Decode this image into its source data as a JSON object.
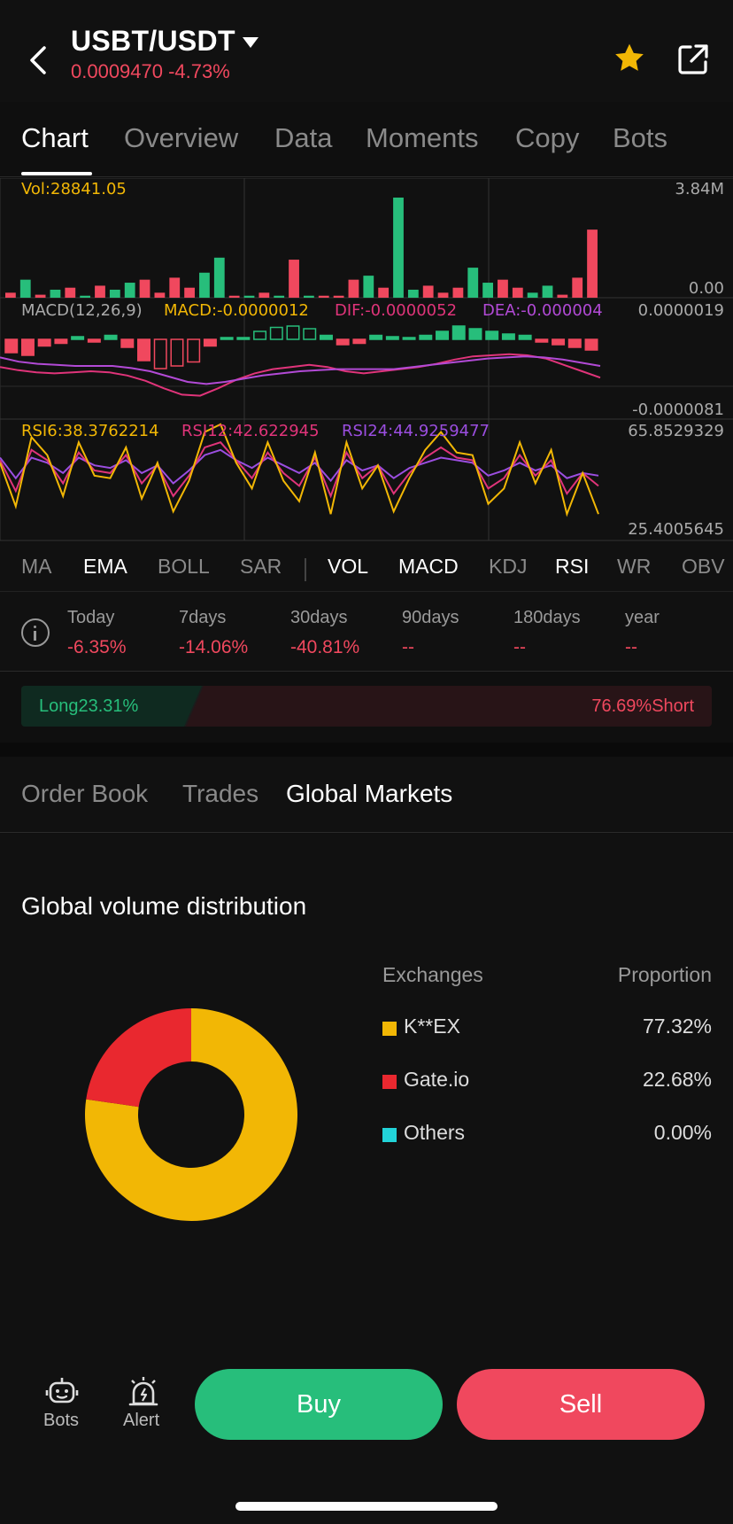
{
  "header": {
    "pair": "USBT/USDT",
    "price_change": "0.0009470 -4.73%"
  },
  "tabs": [
    "Chart",
    "Overview",
    "Data",
    "Moments",
    "Copy",
    "Bots"
  ],
  "chart": {
    "vol_label": "Vol:28841.05",
    "vol_max": "3.84M",
    "vol_min": "0.00",
    "macd_params": "MACD(12,26,9)",
    "macd_value": "MACD:-0.0000012",
    "dif_value": "DIF:-0.0000052",
    "dea_value": "DEA:-0.000004",
    "macd_max": "0.0000019",
    "macd_min": "-0.0000081",
    "rsi6": "RSI6:38.3762214",
    "rsi12": "RSI12:42.622945",
    "rsi24": "RSI24:44.9259477",
    "rsi_max": "65.8529329",
    "rsi_min": "25.4005645"
  },
  "chart_data": {
    "type": "bar",
    "title": "",
    "volume": [
      0.05,
      0.18,
      0.03,
      0.08,
      0.1,
      0.02,
      0.12,
      0.08,
      0.15,
      0.18,
      0.05,
      0.2,
      0.1,
      0.25,
      0.4,
      0.02,
      0.02,
      0.05,
      0.02,
      0.38,
      0.02,
      0.02,
      0.02,
      0.18,
      0.22,
      0.1,
      1.0,
      0.08,
      0.12,
      0.05,
      0.1,
      0.3,
      0.15,
      0.18,
      0.1,
      0.05,
      0.12,
      0.03,
      0.2,
      0.68
    ],
    "volume_up": [
      false,
      true,
      false,
      true,
      false,
      true,
      false,
      true,
      true,
      false,
      false,
      false,
      false,
      true,
      true,
      false,
      true,
      false,
      true,
      false,
      true,
      false,
      false,
      false,
      true,
      false,
      true,
      true,
      false,
      false,
      false,
      true,
      true,
      false,
      false,
      true,
      true,
      false,
      false,
      false
    ],
    "macd_hist": [
      -1.0,
      -1.2,
      -0.5,
      -0.3,
      0.2,
      -0.2,
      0.3,
      -0.6,
      -1.6,
      -2.2,
      -2.0,
      -1.7,
      -0.5,
      0.0,
      0.1,
      0.6,
      0.9,
      1.0,
      0.8,
      0.3,
      -0.4,
      -0.3,
      0.3,
      0.2,
      0.1,
      0.3,
      0.6,
      1.0,
      0.8,
      0.6,
      0.4,
      0.3,
      -0.2,
      -0.4,
      -0.6,
      -0.8
    ],
    "dif": [
      -2.6,
      -2.9,
      -3.1,
      -3.2,
      -3.1,
      -3.0,
      -3.1,
      -3.4,
      -3.9,
      -4.6,
      -5.2,
      -5.3,
      -4.6,
      -3.8,
      -3.2,
      -2.8,
      -2.6,
      -2.4,
      -2.6,
      -3.0,
      -3.2,
      -3.0,
      -2.8,
      -2.6,
      -2.3,
      -1.9,
      -1.6,
      -1.5,
      -1.4,
      -1.5,
      -1.8,
      -2.4,
      -3.0,
      -3.6
    ],
    "dea": [
      -1.7,
      -2.1,
      -2.3,
      -2.4,
      -2.5,
      -2.5,
      -2.5,
      -2.7,
      -3.0,
      -3.5,
      -4.0,
      -4.2,
      -4.0,
      -3.7,
      -3.4,
      -3.2,
      -3.0,
      -2.9,
      -2.8,
      -2.8,
      -2.8,
      -2.8,
      -2.6,
      -2.4,
      -2.2,
      -2.0,
      -1.8,
      -1.7,
      -1.6,
      -1.7,
      -1.9,
      -2.2,
      -2.5
    ],
    "rsi6": [
      50,
      33,
      60,
      53,
      37,
      58,
      45,
      44,
      56,
      36,
      50,
      31,
      43,
      62,
      65,
      50,
      40,
      58,
      43,
      35,
      54,
      30,
      58,
      40,
      49,
      31,
      44,
      55,
      62,
      54,
      53,
      34,
      40,
      58,
      42,
      55,
      30,
      46,
      30
    ],
    "rsi12": [
      51,
      39,
      55,
      51,
      42,
      54,
      47,
      46,
      53,
      42,
      49,
      37,
      45,
      56,
      58,
      51,
      44,
      54,
      46,
      41,
      52,
      37,
      54,
      44,
      49,
      38,
      46,
      52,
      56,
      52,
      51,
      40,
      44,
      53,
      45,
      51,
      38,
      46,
      41
    ],
    "rsi24": [
      52,
      44,
      52,
      50,
      46,
      52,
      49,
      48,
      51,
      46,
      49,
      42,
      47,
      53,
      55,
      51,
      48,
      52,
      49,
      46,
      50,
      43,
      51,
      47,
      49,
      44,
      48,
      50,
      52,
      51,
      50,
      45,
      47,
      50,
      47,
      49,
      44,
      46,
      45
    ]
  },
  "indicators": {
    "main": [
      "MA",
      "EMA",
      "BOLL",
      "SAR"
    ],
    "main_active": [
      false,
      true,
      false,
      false
    ],
    "sub": [
      "VOL",
      "MACD",
      "KDJ",
      "RSI",
      "WR",
      "OBV"
    ],
    "sub_active": [
      true,
      true,
      false,
      true,
      false,
      false
    ]
  },
  "performance": [
    {
      "label": "Today",
      "value": "-6.35%"
    },
    {
      "label": "7days",
      "value": "-14.06%"
    },
    {
      "label": "30days",
      "value": "-40.81%"
    },
    {
      "label": "90days",
      "value": "--"
    },
    {
      "label": "180days",
      "value": "--"
    },
    {
      "label": "year",
      "value": "--"
    }
  ],
  "long_short": {
    "long": "Long23.31%",
    "short": "76.69%Short"
  },
  "sub_tabs": [
    "Order Book",
    "Trades",
    "Global Markets"
  ],
  "global": {
    "title": "Global volume distribution",
    "col_exchanges": "Exchanges",
    "col_proportion": "Proportion",
    "rows": [
      {
        "name": "K**EX",
        "value": "77.32%",
        "color": "#f2b705",
        "share": 77.32
      },
      {
        "name": "Gate.io",
        "value": "22.68%",
        "color": "#e9282f",
        "share": 22.68
      },
      {
        "name": "Others",
        "value": "0.00%",
        "color": "#22d3d8",
        "share": 0
      }
    ]
  },
  "bottom": {
    "bots_label": "Bots",
    "alert_label": "Alert",
    "buy": "Buy",
    "sell": "Sell"
  },
  "colors": {
    "up": "#27be7b",
    "down": "#f0485e",
    "dif": "#e0347a",
    "dea": "#b24ad6",
    "rsi6": "#f2b705",
    "rsi12": "#e0347a",
    "rsi24": "#9b4ee0"
  }
}
